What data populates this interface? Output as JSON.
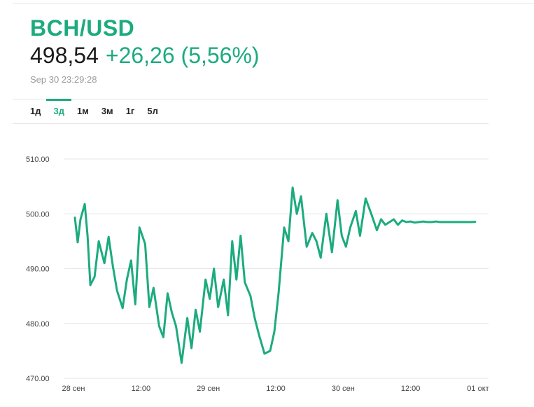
{
  "instrument": {
    "symbol": "BCH/USD",
    "price": "498,54",
    "change": "+26,26 (5,56%)",
    "timestamp": "Sep 30 23:29:28"
  },
  "colors": {
    "accent": "#1cab7e",
    "grid": "#e6e6e6",
    "text": "#1a1a1a"
  },
  "tabs": [
    {
      "label": "1д",
      "active": false
    },
    {
      "label": "3д",
      "active": true
    },
    {
      "label": "1м",
      "active": false
    },
    {
      "label": "3м",
      "active": false
    },
    {
      "label": "1г",
      "active": false
    },
    {
      "label": "5л",
      "active": false
    }
  ],
  "chart_data": {
    "type": "line",
    "title": "",
    "xlabel": "",
    "ylabel": "",
    "ylim": [
      470,
      510
    ],
    "xlim": [
      "2018-09-28T00:00",
      "2018-10-01T00:00"
    ],
    "y_ticks": [
      "510.00",
      "500.00",
      "490.00",
      "480.00",
      "470.00"
    ],
    "x_ticks": [
      {
        "label": "28 сен",
        "at": "2018-09-28T00:00"
      },
      {
        "label": "12:00",
        "at": "2018-09-28T12:00"
      },
      {
        "label": "29 сен",
        "at": "2018-09-29T00:00"
      },
      {
        "label": "12:00",
        "at": "2018-09-29T12:00"
      },
      {
        "label": "30 сен",
        "at": "2018-09-30T00:00"
      },
      {
        "label": "12:00",
        "at": "2018-09-30T12:00"
      },
      {
        "label": "01 окт",
        "at": "2018-10-01T00:00"
      }
    ],
    "grid": true,
    "series": [
      {
        "color": "#1cab7e",
        "x": [
          "2018-09-28T00:15",
          "2018-09-28T00:45",
          "2018-09-28T01:15",
          "2018-09-28T02:00",
          "2018-09-28T02:30",
          "2018-09-28T03:00",
          "2018-09-28T03:45",
          "2018-09-28T04:30",
          "2018-09-28T05:30",
          "2018-09-28T06:15",
          "2018-09-28T07:00",
          "2018-09-28T07:45",
          "2018-09-28T08:45",
          "2018-09-28T09:30",
          "2018-09-28T10:15",
          "2018-09-28T11:00",
          "2018-09-28T11:45",
          "2018-09-28T12:45",
          "2018-09-28T13:30",
          "2018-09-28T14:15",
          "2018-09-28T15:15",
          "2018-09-28T16:00",
          "2018-09-28T16:45",
          "2018-09-28T17:30",
          "2018-09-28T18:15",
          "2018-09-28T19:15",
          "2018-09-28T20:15",
          "2018-09-28T21:00",
          "2018-09-28T21:45",
          "2018-09-28T22:30",
          "2018-09-28T23:30",
          "2018-09-29T00:15",
          "2018-09-29T01:00",
          "2018-09-29T01:45",
          "2018-09-29T02:45",
          "2018-09-29T03:30",
          "2018-09-29T04:15",
          "2018-09-29T05:00",
          "2018-09-29T05:45",
          "2018-09-29T06:30",
          "2018-09-29T07:30",
          "2018-09-29T08:15",
          "2018-09-29T09:00",
          "2018-09-29T10:00",
          "2018-09-29T11:00",
          "2018-09-29T11:45",
          "2018-09-29T12:30",
          "2018-09-29T13:30",
          "2018-09-29T14:15",
          "2018-09-29T15:00",
          "2018-09-29T15:45",
          "2018-09-29T16:30",
          "2018-09-29T17:30",
          "2018-09-29T18:30",
          "2018-09-29T19:15",
          "2018-09-29T20:00",
          "2018-09-29T21:00",
          "2018-09-29T22:00",
          "2018-09-29T23:00",
          "2018-09-29T23:45",
          "2018-09-30T00:30",
          "2018-09-30T01:15",
          "2018-09-30T02:15",
          "2018-09-30T03:00",
          "2018-09-30T04:00",
          "2018-09-30T05:00",
          "2018-09-30T06:00",
          "2018-09-30T06:45",
          "2018-09-30T07:30",
          "2018-09-30T08:15",
          "2018-09-30T09:00",
          "2018-09-30T09:45",
          "2018-09-30T10:30",
          "2018-09-30T11:15",
          "2018-09-30T12:00",
          "2018-09-30T12:45",
          "2018-09-30T13:30",
          "2018-09-30T14:15",
          "2018-09-30T15:00",
          "2018-09-30T15:45",
          "2018-09-30T16:30",
          "2018-09-30T17:15",
          "2018-09-30T18:00",
          "2018-09-30T18:45",
          "2018-09-30T19:45",
          "2018-09-30T20:30",
          "2018-09-30T21:15",
          "2018-09-30T22:00",
          "2018-09-30T22:45",
          "2018-09-30T23:29"
        ],
        "y": [
          499.3,
          494.8,
          499.0,
          501.8,
          496.0,
          487.0,
          488.5,
          495.0,
          491.0,
          495.8,
          490.5,
          486.0,
          482.8,
          488.0,
          491.5,
          483.5,
          497.5,
          494.5,
          483.0,
          486.5,
          479.5,
          477.5,
          485.5,
          482.0,
          479.5,
          472.8,
          481.0,
          475.5,
          482.5,
          478.5,
          488.0,
          484.5,
          490.0,
          483.0,
          488.0,
          481.5,
          495.0,
          488.0,
          496.0,
          487.5,
          485.0,
          481.0,
          478.0,
          474.5,
          475.0,
          478.5,
          485.5,
          497.5,
          495.0,
          504.8,
          500.0,
          503.2,
          494.0,
          496.5,
          495.0,
          492.0,
          500.0,
          493.0,
          502.5,
          496.0,
          494.0,
          497.5,
          500.5,
          496.0,
          502.8,
          500.0,
          497.0,
          499.0,
          498.0,
          498.5,
          499.0,
          498.0,
          498.8,
          498.5,
          498.6,
          498.4,
          498.5,
          498.6,
          498.5,
          498.5,
          498.6,
          498.5,
          498.5,
          498.5,
          498.5,
          498.5,
          498.5,
          498.5,
          498.5,
          498.54
        ]
      }
    ]
  }
}
